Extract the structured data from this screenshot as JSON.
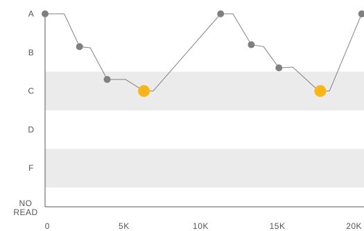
{
  "chart_data": {
    "type": "line",
    "title": "",
    "xlabel": "",
    "ylabel": "",
    "x_ticks": [
      {
        "value": 0,
        "label": "0"
      },
      {
        "value": 5000,
        "label": "5K"
      },
      {
        "value": 10000,
        "label": "10K"
      },
      {
        "value": 15000,
        "label": "15K"
      },
      {
        "value": 20000,
        "label": "20K"
      }
    ],
    "y_levels": [
      {
        "value": 5,
        "label": "A"
      },
      {
        "value": 4,
        "label": "B"
      },
      {
        "value": 3,
        "label": "C"
      },
      {
        "value": 2,
        "label": "D"
      },
      {
        "value": 1,
        "label": "F"
      },
      {
        "value": 0,
        "label": "NO READ"
      }
    ],
    "bands": [
      {
        "from": 3,
        "to": 4
      },
      {
        "from": 1,
        "to": 2
      }
    ],
    "xlim": [
      -150,
      20650
    ],
    "ylim": [
      0,
      5
    ],
    "grid": false,
    "line": [
      {
        "x": -150,
        "y": 5
      },
      {
        "x": 1100,
        "y": 5
      },
      {
        "x": 2100,
        "y": 4.15
      },
      {
        "x": 2800,
        "y": 4.12
      },
      {
        "x": 3900,
        "y": 3.3
      },
      {
        "x": 5100,
        "y": 3.3
      },
      {
        "x": 6300,
        "y": 3
      },
      {
        "x": 6900,
        "y": 3
      },
      {
        "x": 11300,
        "y": 5
      },
      {
        "x": 12100,
        "y": 5
      },
      {
        "x": 13300,
        "y": 4.2
      },
      {
        "x": 14100,
        "y": 4.15
      },
      {
        "x": 15100,
        "y": 3.6
      },
      {
        "x": 16000,
        "y": 3.62
      },
      {
        "x": 17700,
        "y": 3
      },
      {
        "x": 18400,
        "y": 3
      },
      {
        "x": 20500,
        "y": 5
      }
    ],
    "points": [
      {
        "x": -150,
        "y": 5,
        "highlight": false
      },
      {
        "x": 2100,
        "y": 4.15,
        "highlight": false
      },
      {
        "x": 3900,
        "y": 3.3,
        "highlight": false
      },
      {
        "x": 6300,
        "y": 3,
        "highlight": true
      },
      {
        "x": 11300,
        "y": 5,
        "highlight": false
      },
      {
        "x": 13300,
        "y": 4.2,
        "highlight": false
      },
      {
        "x": 15100,
        "y": 3.6,
        "highlight": false
      },
      {
        "x": 17800,
        "y": 3,
        "highlight": true
      },
      {
        "x": 20500,
        "y": 5,
        "highlight": false
      }
    ],
    "colors": {
      "band": "#ebebeb",
      "line": "#808080",
      "point": "#7f7f7f",
      "highlight": "#fbb515",
      "axis": "#555555",
      "text": "#555555"
    }
  }
}
